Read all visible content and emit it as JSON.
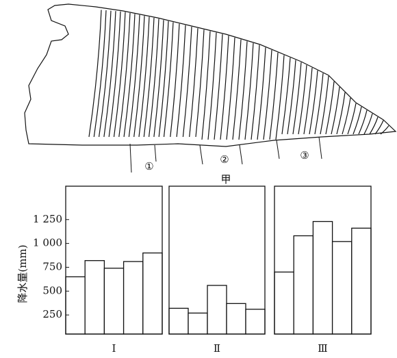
{
  "diagram": {
    "markers": [
      "①",
      "②",
      "③"
    ],
    "caption": "甲"
  },
  "chart_data": [
    {
      "type": "bar",
      "xlabel": "Ⅰ",
      "ylabel": "降水量(mm)",
      "values": [
        650,
        820,
        740,
        810,
        900
      ],
      "color": "#ffffff",
      "ylim": [
        50,
        1600
      ],
      "yticks": [
        250,
        500,
        750,
        {
          "value": 1000,
          "label": "1 000"
        },
        {
          "value": 1250,
          "label": "1 250"
        }
      ]
    },
    {
      "type": "bar",
      "xlabel": "Ⅱ",
      "values": [
        320,
        270,
        560,
        370,
        310
      ],
      "color": "#ffffff",
      "ylim": [
        50,
        1600
      ]
    },
    {
      "type": "bar",
      "xlabel": "Ⅲ",
      "values": [
        700,
        1080,
        1230,
        1020,
        1160
      ],
      "color": "#ffffff",
      "ylim": [
        50,
        1600
      ]
    }
  ]
}
